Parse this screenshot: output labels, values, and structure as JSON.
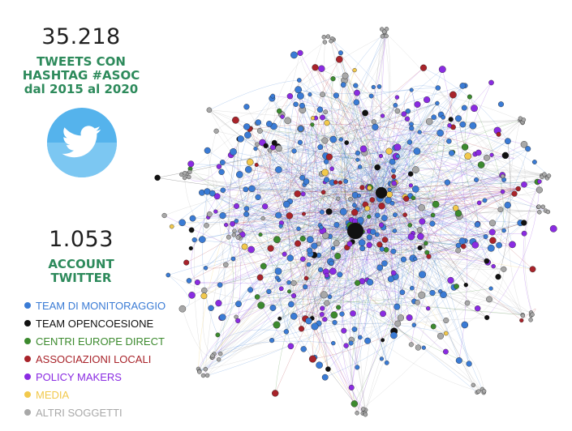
{
  "stats": {
    "tweets_number": "35.218",
    "tweets_line1": "TWEETS CON",
    "tweets_line2": "HASHTAG #ASOC",
    "tweets_line3": "dal 2015 al 2020",
    "accounts_number": "1.053",
    "accounts_line1": "ACCOUNT",
    "accounts_line2": "TWITTER"
  },
  "legend": [
    {
      "label": "TEAM DI MONITORAGGIO",
      "color": "#3a7bd5"
    },
    {
      "label": "TEAM OPENCOESIONE",
      "color": "#111111"
    },
    {
      "label": "CENTRI EUROPE DIRECT",
      "color": "#3c8a2e"
    },
    {
      "label": "ASSOCIAZIONI LOCALI",
      "color": "#a8232a"
    },
    {
      "label": "POLICY MAKERS",
      "color": "#8a2be2"
    },
    {
      "label": "MEDIA",
      "color": "#f2c94c"
    },
    {
      "label": "ALTRI SOGGETTI",
      "color": "#a8a8a8"
    }
  ],
  "icons": {
    "twitter": "twitter-bird-icon"
  }
}
